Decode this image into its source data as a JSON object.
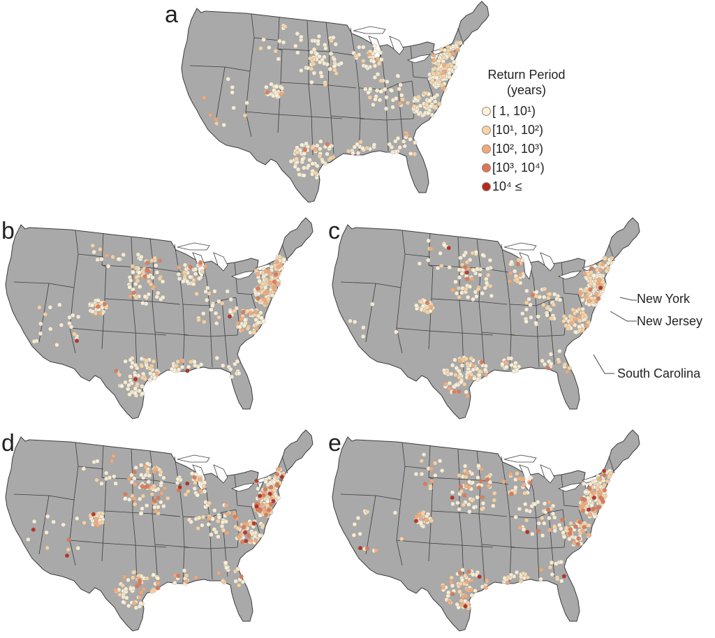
{
  "panels": [
    {
      "letter": "a",
      "seed": 11,
      "counts": [
        360,
        65,
        16,
        3,
        0
      ]
    },
    {
      "letter": "b",
      "seed": 23,
      "counts": [
        330,
        85,
        35,
        16,
        4
      ]
    },
    {
      "letter": "c",
      "seed": 37,
      "counts": [
        330,
        90,
        35,
        12,
        3
      ]
    },
    {
      "letter": "d",
      "seed": 41,
      "counts": [
        300,
        80,
        55,
        35,
        14
      ]
    },
    {
      "letter": "e",
      "seed": 53,
      "counts": [
        300,
        85,
        50,
        35,
        10
      ]
    }
  ],
  "legend": {
    "title_line1": "Return Period",
    "title_line2": "(years)",
    "items": [
      {
        "label": "[ 1, 10¹)",
        "color": "#fdf1d6"
      },
      {
        "label": "[10¹, 10²)",
        "color": "#fbd3a0"
      },
      {
        "label": "[10², 10³)",
        "color": "#f4a877"
      },
      {
        "label": "[10³, 10⁴)",
        "color": "#e07551"
      },
      {
        "label": "10⁴ ≤",
        "color": "#b52a1d"
      }
    ]
  },
  "callouts": [
    {
      "label": "New York"
    },
    {
      "label": "New Jersey"
    },
    {
      "label": "South Carolina"
    }
  ],
  "style": {
    "land": "#a9a9a9",
    "border": "#3c3c3c",
    "marker_edge": "#9a9a9a"
  }
}
